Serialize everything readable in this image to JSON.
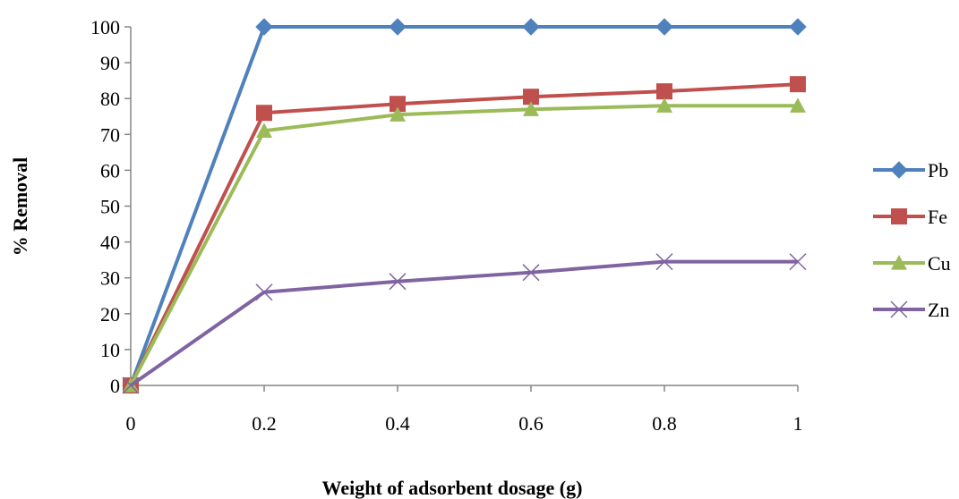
{
  "chart_data": {
    "type": "line",
    "title": "",
    "xlabel": "Weight of adsorbent  dosage (g)",
    "ylabel": "%   Removal",
    "x": [
      0,
      0.2,
      0.4,
      0.6,
      0.8,
      1
    ],
    "x_tick_labels": [
      "0",
      "0.2",
      "0.4",
      "0.6",
      "0.8",
      "1"
    ],
    "ylim": [
      0,
      100
    ],
    "y_ticks": [
      0,
      10,
      20,
      30,
      40,
      50,
      60,
      70,
      80,
      90,
      100
    ],
    "grid": false,
    "legend_position": "right",
    "series": [
      {
        "name": "Pb",
        "color": "#4F81BD",
        "marker": "diamond",
        "values": [
          0,
          100,
          100,
          100,
          100,
          100
        ]
      },
      {
        "name": "Fe",
        "color": "#C0504D",
        "marker": "square",
        "values": [
          0,
          76,
          78.5,
          80.5,
          82,
          84
        ]
      },
      {
        "name": "Cu",
        "color": "#9BBB59",
        "marker": "triangle",
        "values": [
          0,
          71,
          75.5,
          77,
          78,
          78
        ]
      },
      {
        "name": "Zn",
        "color": "#8064A2",
        "marker": "x",
        "values": [
          0,
          26,
          29,
          31.5,
          34.5,
          34.5
        ]
      }
    ]
  }
}
